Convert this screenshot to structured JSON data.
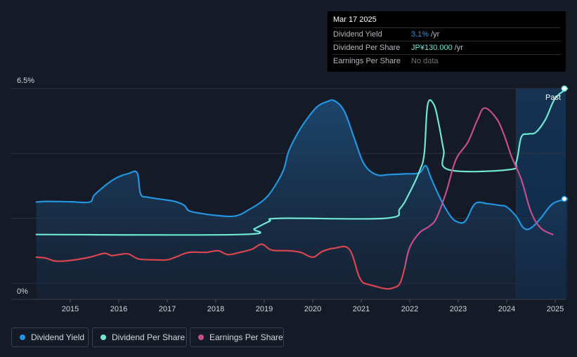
{
  "tooltip": {
    "date": "Mar 17 2025",
    "rows": [
      {
        "label": "Dividend Yield",
        "value": "3.1%",
        "unit": "/yr",
        "color": "#2394df"
      },
      {
        "label": "Dividend Per Share",
        "value": "JP¥130.000",
        "unit": "/yr",
        "color": "#6ee6d2"
      },
      {
        "label": "Earnings Per Share",
        "value": "No data"
      }
    ]
  },
  "legend": {
    "items": [
      {
        "label": "Dividend Yield",
        "color": "#2394df"
      },
      {
        "label": "Dividend Per Share",
        "color": "#6ee6d2"
      },
      {
        "label": "Earnings Per Share",
        "color": "#c64d8c"
      }
    ]
  },
  "chart_data": {
    "type": "line",
    "y_tick_labels": [
      "6.5%",
      "0%"
    ],
    "ylim": [
      0,
      6.5
    ],
    "xlim": [
      2014.55,
      2025.25
    ],
    "x_tick_labels": [
      "2015",
      "2016",
      "2017",
      "2018",
      "2019",
      "2020",
      "2021",
      "2022",
      "2023",
      "2024",
      "2025"
    ],
    "past_label": "Past",
    "past_start": 2024.2,
    "grid": true,
    "series": [
      {
        "name": "Dividend Yield",
        "color": "#2394df",
        "area": true,
        "points": [
          [
            2014.3,
            3.0
          ],
          [
            2014.5,
            3.02
          ],
          [
            2015.0,
            3.01
          ],
          [
            2015.4,
            3.0
          ],
          [
            2015.5,
            3.22
          ],
          [
            2015.8,
            3.6
          ],
          [
            2016.0,
            3.78
          ],
          [
            2016.2,
            3.88
          ],
          [
            2016.38,
            3.9
          ],
          [
            2016.45,
            3.25
          ],
          [
            2016.6,
            3.15
          ],
          [
            2016.9,
            3.08
          ],
          [
            2017.15,
            3.02
          ],
          [
            2017.35,
            2.9
          ],
          [
            2017.45,
            2.73
          ],
          [
            2017.7,
            2.65
          ],
          [
            2018.0,
            2.59
          ],
          [
            2018.4,
            2.57
          ],
          [
            2018.7,
            2.78
          ],
          [
            2019.0,
            3.08
          ],
          [
            2019.2,
            3.45
          ],
          [
            2019.4,
            4.0
          ],
          [
            2019.5,
            4.55
          ],
          [
            2019.7,
            5.15
          ],
          [
            2019.9,
            5.6
          ],
          [
            2020.1,
            5.95
          ],
          [
            2020.3,
            6.1
          ],
          [
            2020.45,
            6.12
          ],
          [
            2020.65,
            5.8
          ],
          [
            2020.85,
            5.0
          ],
          [
            2021.05,
            4.2
          ],
          [
            2021.3,
            3.85
          ],
          [
            2021.6,
            3.85
          ],
          [
            2021.9,
            3.87
          ],
          [
            2022.2,
            3.9
          ],
          [
            2022.33,
            4.12
          ],
          [
            2022.45,
            3.7
          ],
          [
            2022.65,
            3.05
          ],
          [
            2022.85,
            2.55
          ],
          [
            2023.0,
            2.38
          ],
          [
            2023.15,
            2.42
          ],
          [
            2023.35,
            2.95
          ],
          [
            2023.6,
            2.95
          ],
          [
            2023.85,
            2.9
          ],
          [
            2024.0,
            2.85
          ],
          [
            2024.2,
            2.55
          ],
          [
            2024.35,
            2.2
          ],
          [
            2024.5,
            2.2
          ],
          [
            2024.7,
            2.5
          ],
          [
            2024.95,
            2.95
          ],
          [
            2025.25,
            3.1
          ]
        ]
      },
      {
        "name": "Dividend Per Share",
        "color": "#6ee6d2",
        "area": false,
        "points": [
          [
            2014.3,
            2.0
          ],
          [
            2018.5,
            2.0
          ],
          [
            2018.8,
            2.18
          ],
          [
            2019.1,
            2.4
          ],
          [
            2019.35,
            2.5
          ],
          [
            2021.5,
            2.5
          ],
          [
            2021.8,
            2.8
          ],
          [
            2022.0,
            3.3
          ],
          [
            2022.2,
            3.95
          ],
          [
            2022.3,
            4.5
          ],
          [
            2022.37,
            6.0
          ],
          [
            2022.5,
            6.0
          ],
          [
            2022.6,
            5.4
          ],
          [
            2022.7,
            4.6
          ],
          [
            2022.8,
            4.0
          ],
          [
            2024.05,
            4.0
          ],
          [
            2024.2,
            4.25
          ],
          [
            2024.3,
            5.0
          ],
          [
            2024.45,
            5.1
          ],
          [
            2024.6,
            5.15
          ],
          [
            2024.8,
            5.55
          ],
          [
            2025.0,
            6.2
          ],
          [
            2025.25,
            6.5
          ]
        ]
      },
      {
        "name": "Earnings Per Share",
        "color": "#c64d8c",
        "negative_color": "#d8454f",
        "negative_below": 0.6,
        "area": false,
        "points": [
          [
            2014.3,
            1.3
          ],
          [
            2014.5,
            1.27
          ],
          [
            2014.7,
            1.18
          ],
          [
            2015.0,
            1.2
          ],
          [
            2015.4,
            1.3
          ],
          [
            2015.7,
            1.42
          ],
          [
            2015.85,
            1.35
          ],
          [
            2016.0,
            1.38
          ],
          [
            2016.2,
            1.4
          ],
          [
            2016.4,
            1.25
          ],
          [
            2016.7,
            1.22
          ],
          [
            2017.0,
            1.22
          ],
          [
            2017.2,
            1.32
          ],
          [
            2017.45,
            1.45
          ],
          [
            2017.8,
            1.45
          ],
          [
            2018.05,
            1.5
          ],
          [
            2018.25,
            1.38
          ],
          [
            2018.5,
            1.45
          ],
          [
            2018.75,
            1.55
          ],
          [
            2018.95,
            1.7
          ],
          [
            2019.15,
            1.52
          ],
          [
            2019.5,
            1.5
          ],
          [
            2019.75,
            1.45
          ],
          [
            2020.0,
            1.3
          ],
          [
            2020.2,
            1.48
          ],
          [
            2020.45,
            1.58
          ],
          [
            2020.75,
            1.55
          ],
          [
            2020.95,
            0.72
          ],
          [
            2021.05,
            0.5
          ],
          [
            2021.3,
            0.4
          ],
          [
            2021.5,
            0.33
          ],
          [
            2021.65,
            0.35
          ],
          [
            2021.8,
            0.5
          ],
          [
            2021.9,
            1.0
          ],
          [
            2022.0,
            1.6
          ],
          [
            2022.2,
            2.05
          ],
          [
            2022.4,
            2.25
          ],
          [
            2022.55,
            2.5
          ],
          [
            2022.75,
            3.3
          ],
          [
            2022.95,
            4.3
          ],
          [
            2023.2,
            4.85
          ],
          [
            2023.4,
            5.55
          ],
          [
            2023.55,
            5.9
          ],
          [
            2023.8,
            5.55
          ],
          [
            2023.95,
            5.05
          ],
          [
            2024.1,
            4.4
          ],
          [
            2024.3,
            3.7
          ],
          [
            2024.5,
            2.7
          ],
          [
            2024.7,
            2.2
          ],
          [
            2024.95,
            2.0
          ]
        ]
      }
    ]
  }
}
